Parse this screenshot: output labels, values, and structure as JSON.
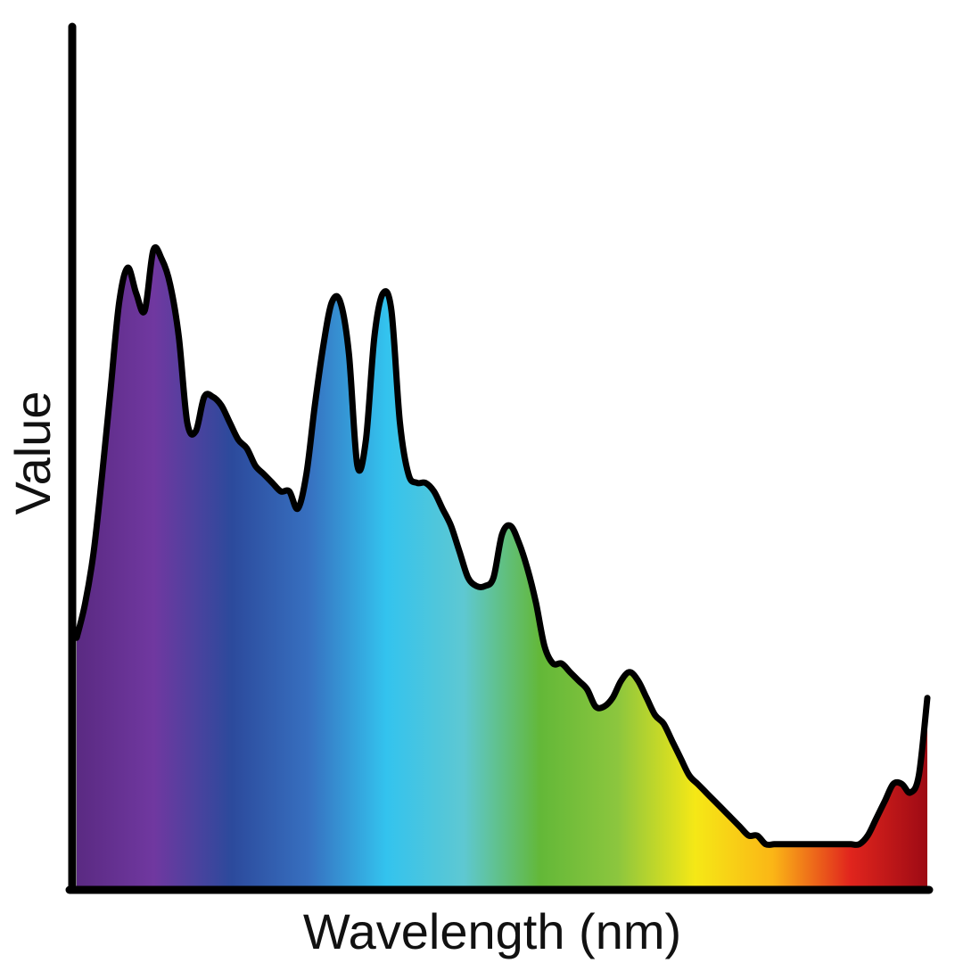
{
  "chart_data": {
    "type": "area",
    "title": "",
    "xlabel": "Wavelength (nm)",
    "ylabel": "Value",
    "xlim": [
      0,
      100
    ],
    "ylim": [
      0,
      100
    ],
    "grid": false,
    "legend": "none",
    "fill": "visible-spectrum-gradient",
    "spectrum_colors": [
      "#5a2a82",
      "#7038a0",
      "#2c4a9c",
      "#3770c0",
      "#33c3ee",
      "#5ec8d2",
      "#63b838",
      "#8cc63e",
      "#f5e816",
      "#fbb616",
      "#e1251d",
      "#9d0a14"
    ],
    "line_color": "#000000",
    "series": [
      {
        "x": [
          0,
          1,
          2,
          3,
          4,
          5,
          6,
          7,
          8,
          9,
          10,
          11,
          12,
          13,
          14,
          15,
          16,
          17,
          18,
          19,
          20,
          21,
          22,
          23,
          24,
          25,
          26,
          27,
          28,
          29,
          30,
          31,
          32,
          33,
          34,
          35,
          36,
          37,
          38,
          39,
          40,
          41,
          42,
          43,
          44,
          45,
          46,
          47,
          48,
          49,
          50,
          51,
          52,
          53,
          54,
          55,
          56,
          57,
          58,
          59,
          60,
          61,
          62,
          63,
          64,
          65,
          66,
          67,
          68,
          69,
          70,
          71,
          72,
          73,
          74,
          75,
          76,
          77,
          78,
          79,
          80,
          81,
          82,
          83,
          84,
          85,
          86,
          87,
          88,
          89,
          90,
          91,
          92,
          93,
          94,
          95,
          96,
          97,
          98,
          99,
          100
        ],
        "values": [
          29,
          33,
          39,
          48,
          58,
          68,
          72,
          69,
          67,
          74,
          73,
          70,
          64,
          54,
          53,
          57,
          57,
          56,
          54,
          52,
          51,
          49,
          48,
          47,
          46,
          46,
          44,
          48,
          56,
          63,
          68,
          68,
          62,
          49,
          52,
          64,
          69,
          67,
          54,
          48,
          47,
          47,
          46,
          44,
          42,
          39,
          36,
          35,
          35,
          36,
          41,
          42,
          40,
          37,
          33,
          28,
          26,
          26,
          25,
          24,
          23,
          21,
          21,
          22,
          24,
          25,
          24,
          22,
          20,
          19,
          17,
          15,
          13,
          12,
          11,
          10,
          9,
          8,
          7,
          6,
          6,
          5,
          5,
          5,
          5,
          5,
          5,
          5,
          5,
          5,
          5,
          5,
          5,
          6,
          8,
          10,
          12,
          12,
          11,
          13,
          22
        ]
      }
    ]
  }
}
